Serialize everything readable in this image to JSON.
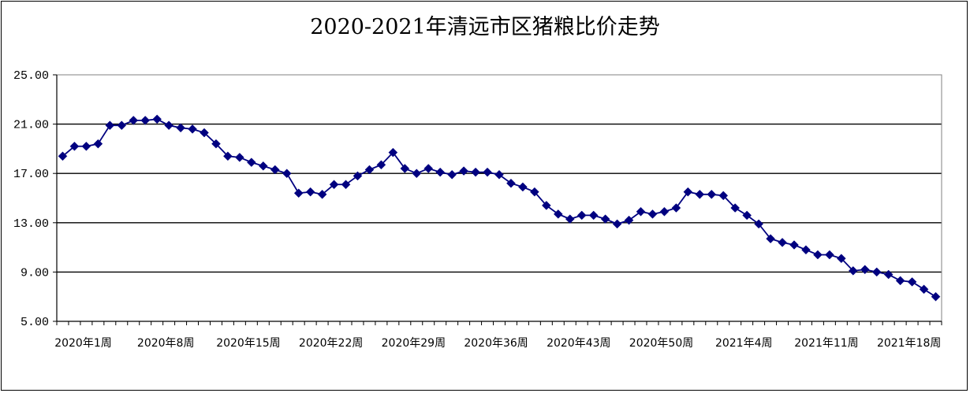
{
  "chart_data": {
    "type": "line",
    "title": "2020-2021年清远市区猪粮比价走势",
    "xlabel": "",
    "ylabel": "",
    "ylim": [
      5,
      25
    ],
    "yticks": [
      "5.00",
      "9.00",
      "13.00",
      "17.00",
      "21.00",
      "25.00"
    ],
    "xtick_labels": [
      "2020年1周",
      "2020年8周",
      "2020年15周",
      "2020年22周",
      "2020年29周",
      "2020年36周",
      "2020年43周",
      "2020年50周",
      "2021年4周",
      "2021年11周",
      "2021年18周"
    ],
    "xtick_every": 7,
    "grid": "horizontal",
    "legend": "none",
    "series": [
      {
        "values": [
          18.4,
          19.2,
          19.2,
          19.4,
          20.9,
          20.9,
          21.3,
          21.3,
          21.4,
          20.9,
          20.7,
          20.6,
          20.3,
          19.4,
          18.4,
          18.3,
          17.9,
          17.6,
          17.3,
          17.0,
          15.4,
          15.5,
          15.3,
          16.1,
          16.1,
          16.8,
          17.3,
          17.7,
          18.7,
          17.4,
          17.0,
          17.4,
          17.1,
          16.9,
          17.2,
          17.1,
          17.1,
          16.9,
          16.2,
          15.9,
          15.5,
          14.4,
          13.7,
          13.3,
          13.6,
          13.6,
          13.3,
          12.9,
          13.2,
          13.9,
          13.7,
          13.9,
          14.2,
          15.5,
          15.3,
          15.3,
          15.2,
          14.2,
          13.6,
          12.9,
          11.7,
          11.4,
          11.2,
          10.8,
          10.4,
          10.4,
          10.1,
          9.1,
          9.2,
          9.0,
          8.8,
          8.3,
          8.2,
          7.6,
          7.0
        ]
      }
    ]
  },
  "colors": {
    "line": "#000080",
    "marker": "#000080",
    "grid": "#000000",
    "background": "#ffffff"
  }
}
